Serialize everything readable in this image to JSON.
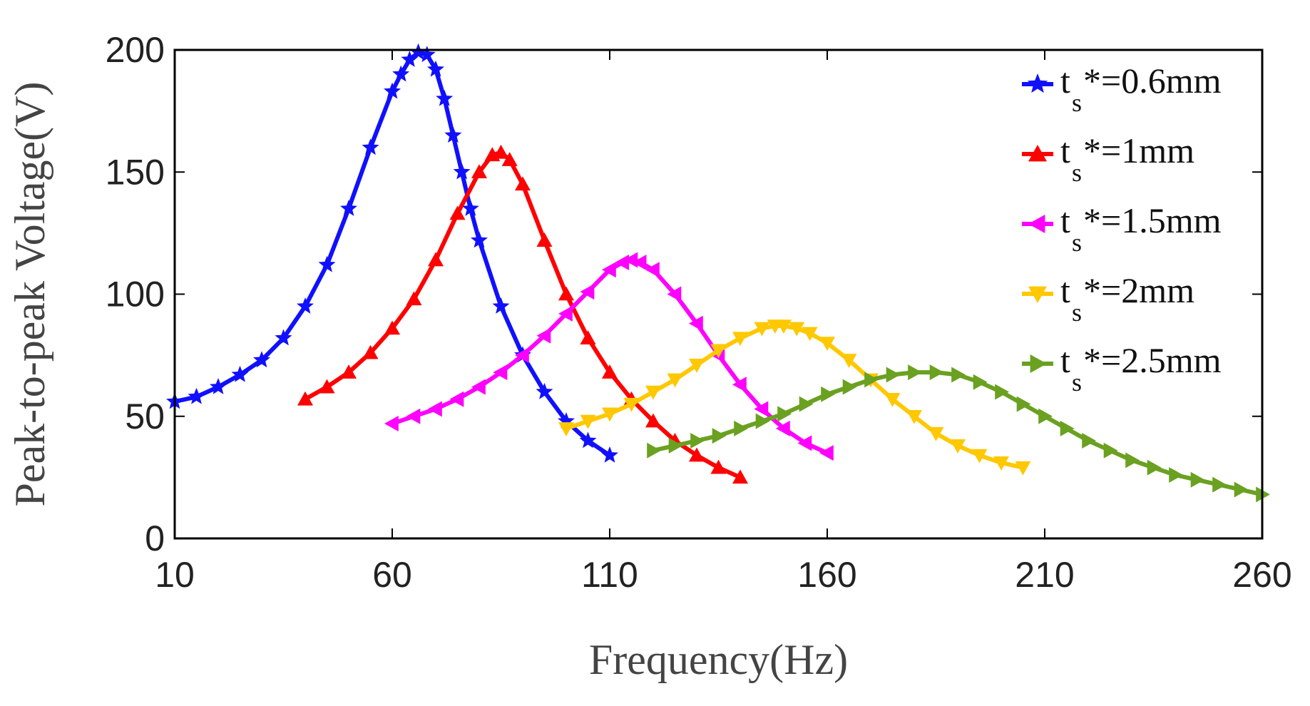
{
  "chart_data": {
    "type": "line",
    "title": "",
    "xlabel": "Frequency(Hz)",
    "ylabel": "Peak-to-peak Voltage(V)",
    "xlim": [
      10,
      260
    ],
    "ylim": [
      0,
      200
    ],
    "xticks": [
      10,
      60,
      110,
      160,
      210,
      260
    ],
    "yticks": [
      0,
      50,
      100,
      150,
      200
    ],
    "grid": false,
    "legend_position": "top-right",
    "series": [
      {
        "name": "t_s*=0.6mm",
        "legend_main": "t",
        "legend_sub": "s",
        "legend_rest": "*=0.6mm",
        "color": "#1010ff",
        "marker": "star",
        "x": [
          10,
          15,
          20,
          25,
          30,
          35,
          40,
          45,
          50,
          55,
          60,
          62,
          64,
          66,
          68,
          70,
          72,
          74,
          76,
          78,
          80,
          85,
          90,
          95,
          100,
          105,
          110
        ],
        "y": [
          56,
          58,
          62,
          67,
          73,
          82,
          95,
          112,
          135,
          160,
          183,
          190,
          196,
          199,
          198,
          192,
          180,
          165,
          150,
          135,
          122,
          95,
          75,
          60,
          48,
          40,
          34
        ]
      },
      {
        "name": "t_s*=1mm",
        "legend_main": "t",
        "legend_sub": "s",
        "legend_rest": "*=1mm",
        "color": "#ff0000",
        "marker": "triangle-up",
        "x": [
          40,
          45,
          50,
          55,
          60,
          65,
          70,
          75,
          80,
          83,
          85,
          87,
          90,
          95,
          100,
          105,
          110,
          115,
          120,
          125,
          130,
          135,
          140
        ],
        "y": [
          57,
          62,
          68,
          76,
          86,
          98,
          114,
          133,
          150,
          157,
          158,
          155,
          145,
          122,
          100,
          82,
          68,
          57,
          48,
          40,
          34,
          29,
          25
        ]
      },
      {
        "name": "t_s*=1.5mm",
        "legend_main": "t",
        "legend_sub": "s",
        "legend_rest": "*=1.5mm",
        "color": "#ff00ff",
        "marker": "triangle-left",
        "x": [
          60,
          65,
          70,
          75,
          80,
          85,
          90,
          95,
          100,
          105,
          110,
          113,
          115,
          117,
          120,
          125,
          130,
          135,
          140,
          145,
          150,
          155,
          160
        ],
        "y": [
          47,
          50,
          53,
          57,
          62,
          68,
          75,
          83,
          92,
          101,
          110,
          113,
          114,
          113,
          110,
          100,
          88,
          75,
          63,
          53,
          45,
          39,
          35
        ]
      },
      {
        "name": "t_s*=2mm",
        "legend_main": "t",
        "legend_sub": "s",
        "legend_rest": "*=2mm",
        "color": "#ffc800",
        "marker": "triangle-down",
        "x": [
          100,
          105,
          110,
          115,
          120,
          125,
          130,
          135,
          140,
          145,
          148,
          150,
          153,
          156,
          160,
          165,
          170,
          175,
          180,
          185,
          190,
          195,
          200,
          205
        ],
        "y": [
          45,
          48,
          51,
          55,
          60,
          65,
          71,
          77,
          82,
          86,
          87,
          87,
          86,
          84,
          80,
          73,
          65,
          57,
          50,
          43,
          38,
          34,
          31,
          29
        ]
      },
      {
        "name": "t_s*=2.5mm",
        "legend_main": "t",
        "legend_sub": "s",
        "legend_rest": "*=2.5mm",
        "color": "#6aa121",
        "marker": "triangle-right",
        "x": [
          120,
          125,
          130,
          135,
          140,
          145,
          150,
          155,
          160,
          165,
          170,
          175,
          180,
          185,
          190,
          195,
          200,
          205,
          210,
          215,
          220,
          225,
          230,
          235,
          240,
          245,
          250,
          255,
          260
        ],
        "y": [
          36,
          38,
          40,
          42,
          45,
          48,
          51,
          55,
          59,
          62,
          65,
          67,
          68,
          68,
          67,
          64,
          60,
          55,
          50,
          45,
          40,
          36,
          32,
          29,
          26,
          24,
          22,
          20,
          18
        ]
      }
    ]
  }
}
